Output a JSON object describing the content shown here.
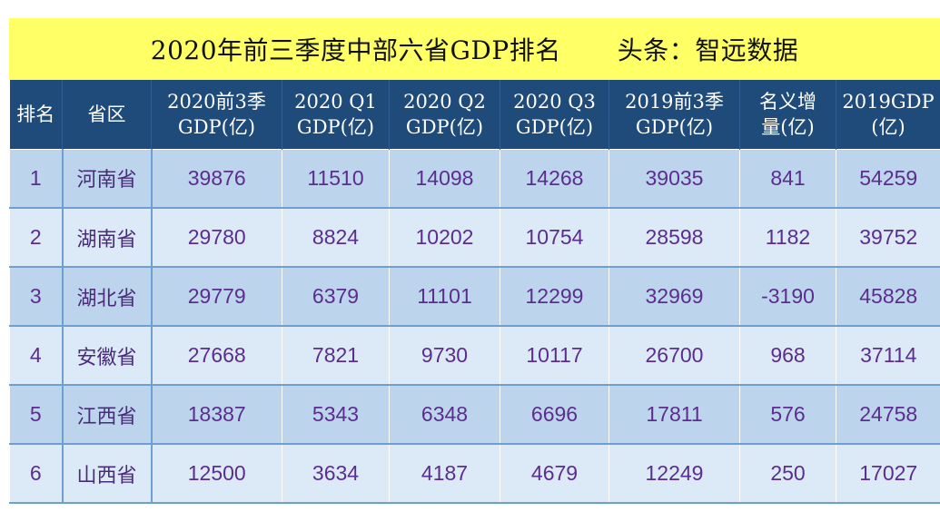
{
  "title": {
    "main": "2020年前三季度中部六省GDP排名",
    "source": "头条：智远数据"
  },
  "headers": [
    {
      "l1": "排名",
      "l2": ""
    },
    {
      "l1": "省区",
      "l2": ""
    },
    {
      "l1": "2020前3季",
      "l2": "GDP(亿)"
    },
    {
      "l1": "2020 Q1",
      "l2": "GDP(亿)"
    },
    {
      "l1": "2020 Q2",
      "l2": "GDP(亿)"
    },
    {
      "l1": "2020 Q3",
      "l2": "GDP(亿)"
    },
    {
      "l1": "2019前3季",
      "l2": "GDP(亿)"
    },
    {
      "l1": "名义增",
      "l2": "量(亿)"
    },
    {
      "l1": "2019GDP",
      "l2": "(亿)"
    }
  ],
  "rows": [
    {
      "rank": "1",
      "province": "河南省",
      "gdp_2020_q1_q3": "39876",
      "gdp_2020_q1": "11510",
      "gdp_2020_q2": "14098",
      "gdp_2020_q3": "14268",
      "gdp_2019_q1_q3": "39035",
      "nominal_increase": "841",
      "gdp_2019": "54259"
    },
    {
      "rank": "2",
      "province": "湖南省",
      "gdp_2020_q1_q3": "29780",
      "gdp_2020_q1": "8824",
      "gdp_2020_q2": "10202",
      "gdp_2020_q3": "10754",
      "gdp_2019_q1_q3": "28598",
      "nominal_increase": "1182",
      "gdp_2019": "39752"
    },
    {
      "rank": "3",
      "province": "湖北省",
      "gdp_2020_q1_q3": "29779",
      "gdp_2020_q1": "6379",
      "gdp_2020_q2": "11101",
      "gdp_2020_q3": "12299",
      "gdp_2019_q1_q3": "32969",
      "nominal_increase": "-3190",
      "gdp_2019": "45828"
    },
    {
      "rank": "4",
      "province": "安徽省",
      "gdp_2020_q1_q3": "27668",
      "gdp_2020_q1": "7821",
      "gdp_2020_q2": "9730",
      "gdp_2020_q3": "10117",
      "gdp_2019_q1_q3": "26700",
      "nominal_increase": "968",
      "gdp_2019": "37114"
    },
    {
      "rank": "5",
      "province": "江西省",
      "gdp_2020_q1_q3": "18387",
      "gdp_2020_q1": "5343",
      "gdp_2020_q2": "6348",
      "gdp_2020_q3": "6696",
      "gdp_2019_q1_q3": "17811",
      "nominal_increase": "576",
      "gdp_2019": "24758"
    },
    {
      "rank": "6",
      "province": "山西省",
      "gdp_2020_q1_q3": "12500",
      "gdp_2020_q1": "3634",
      "gdp_2020_q2": "4187",
      "gdp_2020_q3": "4679",
      "gdp_2019_q1_q3": "12249",
      "nominal_increase": "250",
      "gdp_2019": "17027"
    }
  ],
  "colors": {
    "title_bg": "#ffff66",
    "header_bg": "#1f4b7a",
    "row_odd_bg": "#bdd4ed",
    "row_even_bg": "#dce9f6",
    "cell_text": "#5b2d8e"
  }
}
